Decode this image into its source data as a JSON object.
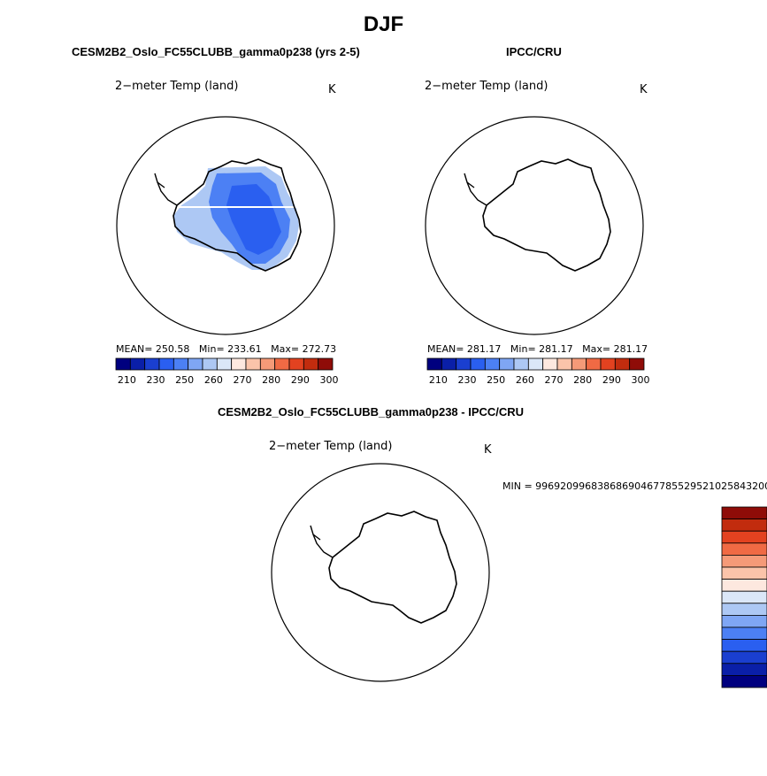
{
  "figure": {
    "title": "DJF"
  },
  "panels": [
    {
      "title": "CESM2B2_Oslo_FC55CLUBB_gamma0p238 (yrs 2-5)",
      "variable": "2−meter Temp (land)",
      "units": "K",
      "stats": {
        "mean_label": "MEAN=",
        "mean": "250.58",
        "min_label": "Min=",
        "min": "233.61",
        "max_label": "Max=",
        "max": "272.73"
      }
    },
    {
      "title": "IPCC/CRU",
      "variable": "2−meter Temp (land)",
      "units": "K",
      "stats": {
        "mean_label": "MEAN=",
        "mean": "281.17",
        "min_label": "Min=",
        "min": "281.17",
        "max_label": "Max=",
        "max": "281.17"
      }
    },
    {
      "title": "CESM2B2_Oslo_FC55CLUBB_gamma0p238 - IPCC/CRU",
      "variable": "2−meter Temp (land)",
      "units": "K",
      "min_text": "MIN = 99692099683868690467785529521025843200"
    }
  ],
  "colorbar": {
    "tick_labels": [
      "210",
      "230",
      "250",
      "260",
      "270",
      "280",
      "290",
      "300"
    ],
    "colors": [
      "#00007f",
      "#0a1fa8",
      "#1a3fd0",
      "#2a5ff0",
      "#4c80f4",
      "#7fa6f4",
      "#adc8f4",
      "#dbe7f8",
      "#fde8df",
      "#fbc4aa",
      "#f59a78",
      "#f06a44",
      "#e34220",
      "#c22c0e",
      "#8f0c08"
    ]
  },
  "chart_data": {
    "type": "heatmap",
    "title": "DJF",
    "description_units": "K",
    "series": [
      {
        "name": "CESM2B2_Oslo_FC55CLUBB_gamma0p238 (yrs 2-5)",
        "mean": 250.58,
        "min": 233.61,
        "max": 272.73
      },
      {
        "name": "IPCC/CRU",
        "mean": 281.17,
        "min": 281.17,
        "max": 281.17
      }
    ],
    "levels": [
      210,
      230,
      250,
      260,
      270,
      280,
      290,
      300
    ]
  }
}
